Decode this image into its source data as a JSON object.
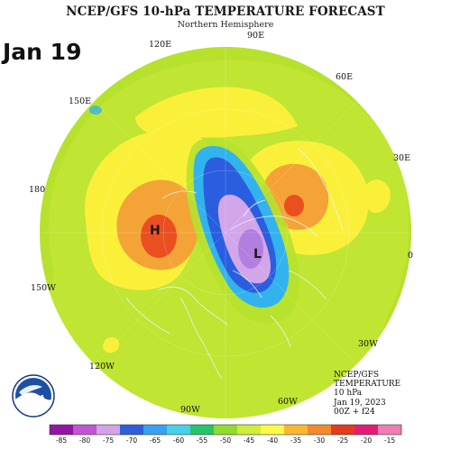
{
  "title": "NCEP/GFS 10-hPa TEMPERATURE FORECAST",
  "subtitle": "Northern Hemisphere",
  "date_stamp": "Jan 19",
  "longitude_labels": [
    "90E",
    "120E",
    "60E",
    "150E",
    "30E",
    "180",
    "0",
    "150W",
    "30W",
    "120W",
    "90W",
    "60W"
  ],
  "center_marks": {
    "high": "H",
    "low": "L"
  },
  "info_lines": [
    "NCEP/GFS",
    "TEMPERATURE",
    "10 hPa",
    "Jan 19, 2023",
    "00Z + f24"
  ],
  "logo_text": "NOAA",
  "colorbar": {
    "labels": [
      "-85",
      "-80",
      "-75",
      "-70",
      "-65",
      "-60",
      "-55",
      "-50",
      "-45",
      "-40",
      "-35",
      "-30",
      "-25",
      "-20",
      "-15"
    ],
    "colors": [
      "#9414a6",
      "#c156d3",
      "#d4a2e6",
      "#2d5fd8",
      "#3aa0f0",
      "#48d0e6",
      "#28c46a",
      "#8fdc2e",
      "#d2ec3a",
      "#fbfa46",
      "#f9b830",
      "#f38a2d",
      "#e33b1e",
      "#e21c78",
      "#f07cb4"
    ]
  },
  "palette": {
    "disk_base": "#b6e12d",
    "outer_ring": "#c9ea36",
    "warm_yellow": "#faf03a",
    "orange": "#f4a336",
    "red_orange": "#ea4f20",
    "cyan": "#33b3ee",
    "blue": "#2a5edf",
    "lavender": "#d3a6ea",
    "violet": "#b27ee0",
    "coastline": "#eef3ff"
  }
}
